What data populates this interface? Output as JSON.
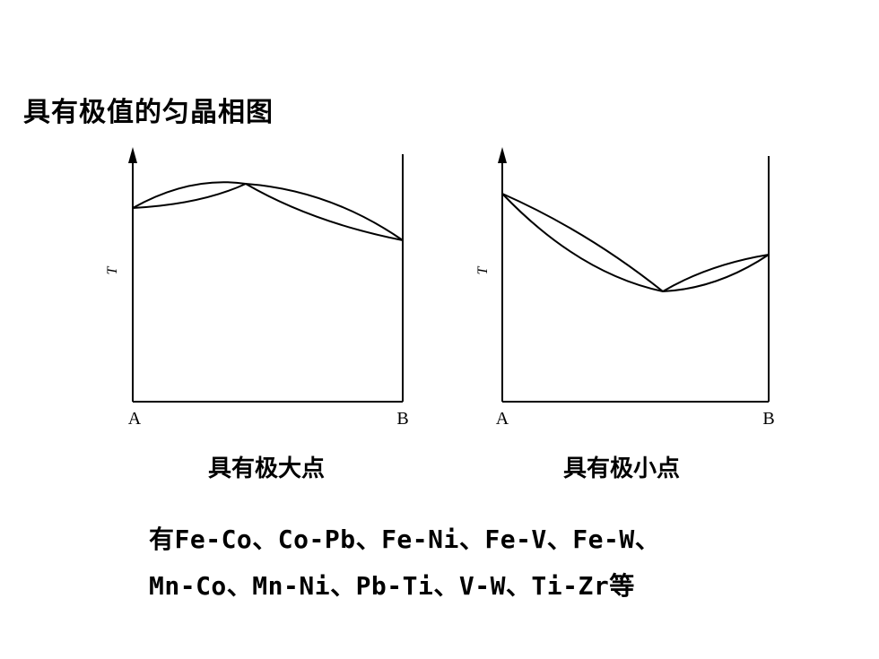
{
  "title": "具有极值的匀晶相图",
  "diagrams": [
    {
      "caption": "具有极大点",
      "y_axis_label": "T",
      "left_label": "A",
      "right_label": "B"
    },
    {
      "caption": "具有极小点",
      "y_axis_label": "T",
      "left_label": "A",
      "right_label": "B"
    }
  ],
  "examples": {
    "line1": "有Fe-Co、Co-Pb、Fe-Ni、Fe-V、Fe-W、",
    "line2": "Mn-Co、Mn-Ni、Pb-Ti、V-W、Ti-Zr等"
  }
}
